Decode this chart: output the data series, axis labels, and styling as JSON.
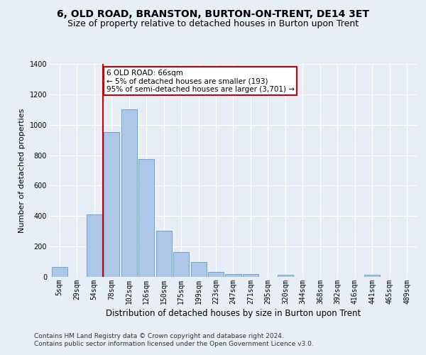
{
  "title": "6, OLD ROAD, BRANSTON, BURTON-ON-TRENT, DE14 3ET",
  "subtitle": "Size of property relative to detached houses in Burton upon Trent",
  "xlabel": "Distribution of detached houses by size in Burton upon Trent",
  "ylabel": "Number of detached properties",
  "footer_line1": "Contains HM Land Registry data © Crown copyright and database right 2024.",
  "footer_line2": "Contains public sector information licensed under the Open Government Licence v3.0.",
  "bar_labels": [
    "5sqm",
    "29sqm",
    "54sqm",
    "78sqm",
    "102sqm",
    "126sqm",
    "150sqm",
    "175sqm",
    "199sqm",
    "223sqm",
    "247sqm",
    "271sqm",
    "295sqm",
    "320sqm",
    "344sqm",
    "368sqm",
    "392sqm",
    "416sqm",
    "441sqm",
    "465sqm",
    "489sqm"
  ],
  "bar_values": [
    65,
    0,
    410,
    950,
    1100,
    775,
    305,
    165,
    100,
    35,
    18,
    18,
    0,
    12,
    0,
    0,
    0,
    0,
    15,
    0,
    0
  ],
  "bar_color": "#aec6e8",
  "bar_edge_color": "#5b9bd5",
  "annotation_box_text": "6 OLD ROAD: 66sqm\n← 5% of detached houses are smaller (193)\n95% of semi-detached houses are larger (3,701) →",
  "annotation_box_color": "#ffffff",
  "annotation_box_edge_color": "#cc0000",
  "vline_x_index": 2.5,
  "vline_color": "#cc0000",
  "ylim": [
    0,
    1400
  ],
  "yticks": [
    0,
    200,
    400,
    600,
    800,
    1000,
    1200,
    1400
  ],
  "bg_color": "#e8eef5",
  "plot_bg_color": "#e8eef5",
  "grid_color": "#ffffff",
  "title_fontsize": 10,
  "subtitle_fontsize": 9,
  "xlabel_fontsize": 8.5,
  "ylabel_fontsize": 8,
  "tick_fontsize": 7,
  "footer_fontsize": 6.5,
  "annot_fontsize": 7.5
}
